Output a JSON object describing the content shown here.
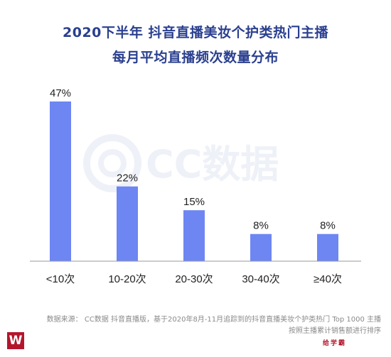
{
  "title_line1": "2020下半年 抖音直播美妆个护类热门主播",
  "title_line2": "每月平均直播频次数量分布",
  "watermark": "CC数据",
  "chart_data": {
    "type": "bar",
    "categories": [
      "<10次",
      "10-20次",
      "20-30次",
      "30-40次",
      "≥40次"
    ],
    "values": [
      47,
      22,
      15,
      8,
      8
    ],
    "value_labels": [
      "47%",
      "22%",
      "15%",
      "8%",
      "8%"
    ],
    "unit": "%",
    "title": "2020下半年 抖音直播美妆个护类热门主播 每月平均直播频次数量分布",
    "xlabel": "",
    "ylabel": "",
    "ylim": [
      0,
      50
    ],
    "grid": false,
    "bar_color": "#6d86f2"
  },
  "footnote_line1": "数据来源： CC数据 抖音直播版，基于2020年8月-11月追踪到的抖音直播美妆个护类热门 Top 1000 主播",
  "footnote_line2": "按照主播累计销售额进行排序",
  "logo_letter": "W",
  "brand_text": "给学霸",
  "colors": {
    "title": "#2a3f8f",
    "bar": "#6d86f2",
    "axis": "#9a9a9a",
    "logo": "#b3162c"
  }
}
